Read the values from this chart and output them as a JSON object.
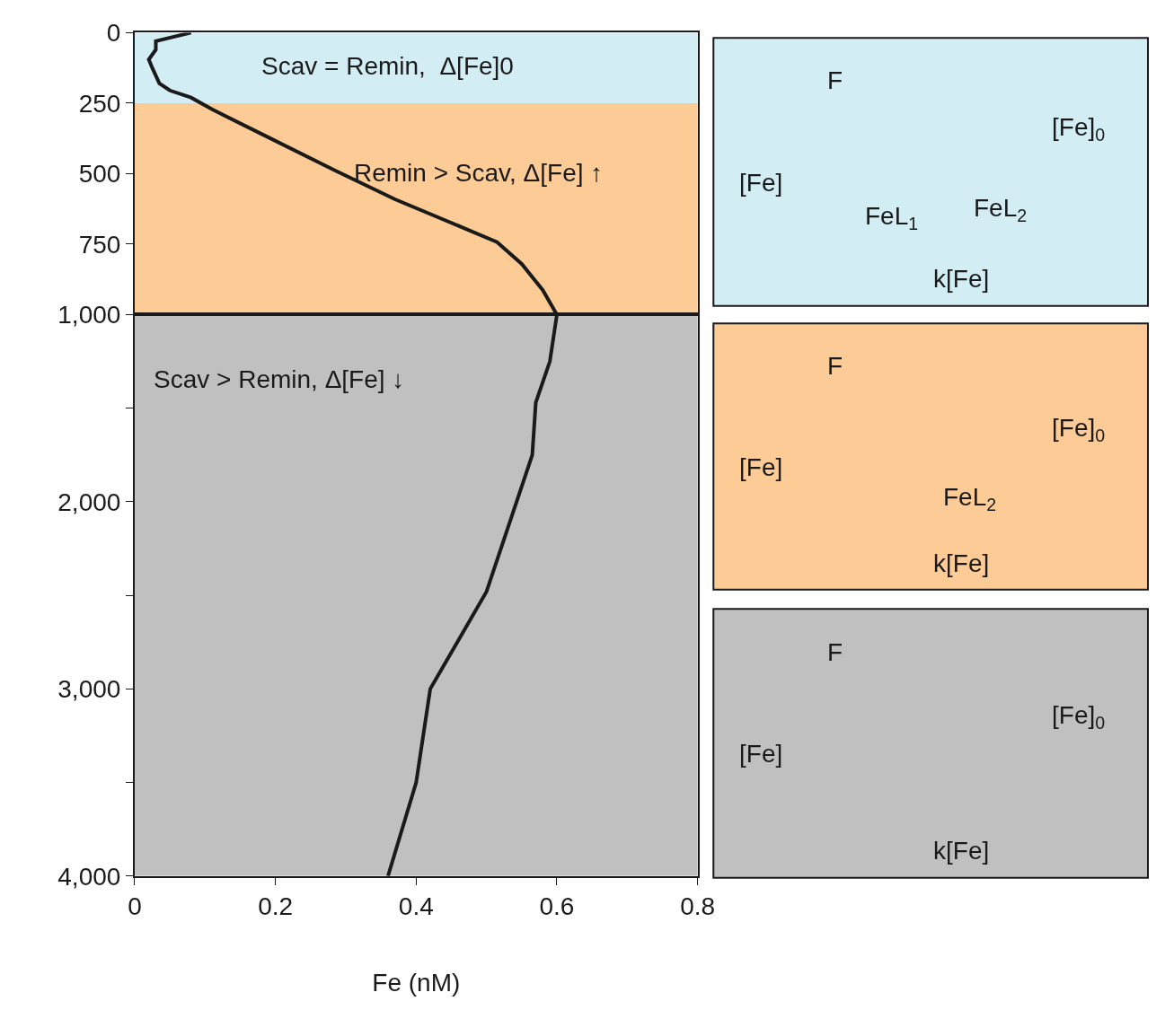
{
  "chart_data": [
    {
      "type": "line",
      "x": [
        0.08,
        0.03,
        0.03,
        0.02,
        0.025,
        0.035,
        0.05,
        0.08,
        0.11,
        0.18,
        0.285,
        0.37,
        0.465,
        0.515,
        0.55,
        0.58,
        0.6
      ],
      "values": [
        0,
        30,
        60,
        95,
        125,
        180,
        205,
        230,
        272,
        359,
        489,
        591,
        690,
        743,
        820,
        913,
        1000
      ],
      "color": "#1a1a1a",
      "xlim": [
        0,
        0.8
      ],
      "ylim": [
        1000,
        0
      ],
      "yticks": [
        0,
        250,
        500,
        750,
        {
          "value": 1000,
          "label": "1,000"
        }
      ],
      "tick_labels": "y",
      "marker": "none",
      "line_style": "solid",
      "bands": [
        {
          "axis": "y",
          "from": 0,
          "to": 250,
          "label": "Scav = Remin,  Δ[Fe]0",
          "color": "#d2edf3"
        },
        {
          "axis": "y",
          "from": 250,
          "to": 1000,
          "label": "Remin > Scav, Δ[Fe] ↑",
          "color": "#fccb96"
        }
      ]
    },
    {
      "type": "line",
      "x": [
        0.6,
        0.59,
        0.57,
        0.565,
        0.5,
        0.42,
        0.4,
        0.36
      ],
      "values": [
        1000,
        1250,
        1470,
        1750,
        2480,
        3000,
        3500,
        4000
      ],
      "color": "#1a1a1a",
      "xlim": [
        0,
        0.8
      ],
      "ylim": [
        4000,
        1000
      ],
      "xticks": [
        0,
        0.2,
        0.4,
        0.6,
        0.8
      ],
      "yticks": [
        {
          "value": 1500,
          "label": null
        },
        {
          "value": 2000,
          "label": "2,000"
        },
        {
          "value": 2500,
          "label": null
        },
        {
          "value": 3000,
          "label": "3,000"
        },
        {
          "value": 3500,
          "label": null
        },
        {
          "value": 4000,
          "label": "4,000"
        }
      ],
      "xlabel": "Fe (nM)",
      "marker": "none",
      "line_style": "solid",
      "bands": [
        {
          "axis": "y",
          "from": 1000,
          "to": 4000,
          "label": "Scav > Remin, Δ[Fe] ↓",
          "color": "#c0c0c0"
        }
      ]
    },
    {
      "type": "other",
      "annotations": [
        "F",
        "[Fe]$_{0}$",
        "[Fe]",
        "FeL$_{1}$",
        "FeL$_{2}$",
        "k[Fe]"
      ]
    },
    {
      "type": "other",
      "annotations": [
        "F",
        "[Fe]$_{0}$",
        "[Fe]",
        "FeL$_{2}$",
        "k[Fe]"
      ]
    },
    {
      "type": "other",
      "annotations": [
        "F",
        "[Fe]$_{0}$",
        "[Fe]",
        "k[Fe]"
      ]
    }
  ]
}
